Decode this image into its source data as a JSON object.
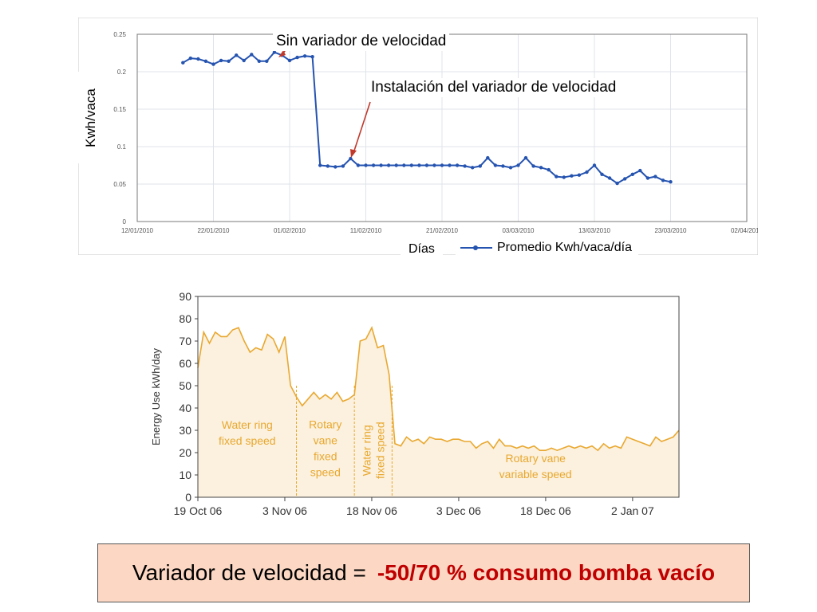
{
  "colors": {
    "line_blue": "#2553b0",
    "arrow_red": "#c0392b",
    "orange": "#e9a830",
    "orange_fill": "#fbf1de",
    "summary_bg": "#fcd8c4",
    "summary_accent": "#c00000"
  },
  "annotations": {
    "sin_variador": "Sin variador de velocidad",
    "instalacion": "Instalación del variador de velocidad"
  },
  "summary": {
    "text": "Variador de velocidad =",
    "highlight": "-50/70 % consumo bomba vacío"
  },
  "chart_data": [
    {
      "type": "line",
      "xlabel": "Días",
      "ylabel": "Kwh/vaca",
      "ylim": [
        0,
        0.25
      ],
      "y_ticks": [
        "0",
        "0.05",
        "0.1",
        "0.15",
        "0.2",
        "0.25"
      ],
      "x_tick_labels": [
        "12/01/2010",
        "22/01/2010",
        "01/02/2010",
        "11/02/2010",
        "21/02/2010",
        "03/03/2010",
        "13/03/2010",
        "23/03/2010",
        "02/04/2010"
      ],
      "xlim": [
        "12/01/2010",
        "02/04/2010"
      ],
      "grid": true,
      "legend_position": "bottom",
      "series": [
        {
          "name": "Promedio Kwh/vaca/día",
          "x": [
            "18/01/2010",
            "19/01/2010",
            "20/01/2010",
            "21/01/2010",
            "22/01/2010",
            "23/01/2010",
            "24/01/2010",
            "25/01/2010",
            "26/01/2010",
            "27/01/2010",
            "28/01/2010",
            "29/01/2010",
            "30/01/2010",
            "31/01/2010",
            "01/02/2010",
            "02/02/2010",
            "03/02/2010",
            "04/02/2010",
            "05/02/2010",
            "06/02/2010",
            "07/02/2010",
            "08/02/2010",
            "09/02/2010",
            "10/02/2010",
            "11/02/2010",
            "12/02/2010",
            "13/02/2010",
            "14/02/2010",
            "15/02/2010",
            "16/02/2010",
            "17/02/2010",
            "18/02/2010",
            "19/02/2010",
            "20/02/2010",
            "21/02/2010",
            "22/02/2010",
            "23/02/2010",
            "24/02/2010",
            "25/02/2010",
            "26/02/2010",
            "27/02/2010",
            "28/02/2010",
            "01/03/2010",
            "02/03/2010",
            "03/03/2010",
            "04/03/2010",
            "05/03/2010",
            "06/03/2010",
            "07/03/2010",
            "08/03/2010",
            "09/03/2010",
            "10/03/2010",
            "11/03/2010",
            "12/03/2010",
            "13/03/2010",
            "14/03/2010",
            "15/03/2010",
            "16/03/2010",
            "17/03/2010",
            "18/03/2010",
            "19/03/2010",
            "20/03/2010",
            "21/03/2010",
            "22/03/2010",
            "23/03/2010"
          ],
          "values": [
            0.212,
            0.218,
            0.217,
            0.214,
            0.21,
            0.215,
            0.214,
            0.222,
            0.215,
            0.223,
            0.214,
            0.214,
            0.226,
            0.222,
            0.215,
            0.219,
            0.221,
            0.22,
            0.075,
            0.074,
            0.073,
            0.074,
            0.084,
            0.075,
            0.075,
            0.075,
            0.075,
            0.075,
            0.075,
            0.075,
            0.075,
            0.075,
            0.075,
            0.075,
            0.075,
            0.075,
            0.075,
            0.074,
            0.072,
            0.074,
            0.085,
            0.075,
            0.074,
            0.072,
            0.075,
            0.085,
            0.074,
            0.072,
            0.069,
            0.06,
            0.059,
            0.061,
            0.062,
            0.066,
            0.075,
            0.063,
            0.058,
            0.051,
            0.057,
            0.063,
            0.068,
            0.058,
            0.06,
            0.055,
            0.053
          ]
        }
      ]
    },
    {
      "type": "area",
      "xlabel": "",
      "ylabel": "Energy Use kWh/day",
      "ylim": [
        0,
        90
      ],
      "y_ticks": [
        "0",
        "10",
        "20",
        "30",
        "40",
        "50",
        "60",
        "70",
        "80",
        "90"
      ],
      "x_tick_labels": [
        "19 Oct 06",
        "3 Nov 06",
        "18 Nov 06",
        "3 Dec 06",
        "18 Dec 06",
        "2 Jan 07"
      ],
      "x_range_days": [
        0,
        83
      ],
      "grid": false,
      "regions": [
        {
          "label_lines": [
            "Water ring",
            "fixed speed"
          ],
          "x_start_day": 0,
          "x_end_day": 17,
          "rotated": false
        },
        {
          "label_lines": [
            "Rotary",
            "vane",
            "fixed",
            "speed"
          ],
          "x_start_day": 17,
          "x_end_day": 27,
          "rotated": false
        },
        {
          "label_lines": [
            "Water ring",
            "fixed speed"
          ],
          "x_start_day": 27,
          "x_end_day": 33.5,
          "rotated": true
        },
        {
          "label_lines": [
            "Rotary vane",
            "variable speed"
          ],
          "x_start_day": 33.5,
          "x_end_day": 83,
          "rotated": false
        }
      ],
      "series": [
        {
          "x_days": [
            0,
            1,
            2,
            3,
            4,
            5,
            6,
            7,
            8,
            9,
            10,
            11,
            12,
            13,
            14,
            15,
            16,
            17,
            18,
            19,
            20,
            21,
            22,
            23,
            24,
            25,
            26,
            27,
            28,
            29,
            30,
            31,
            32,
            33,
            34,
            35,
            36,
            37,
            38,
            39,
            40,
            41,
            42,
            43,
            44,
            45,
            46,
            47,
            48,
            49,
            50,
            51,
            52,
            53,
            54,
            55,
            56,
            57,
            58,
            59,
            60,
            61,
            62,
            63,
            64,
            65,
            66,
            67,
            68,
            69,
            70,
            71,
            72,
            73,
            74,
            75,
            76,
            77,
            78,
            79,
            80,
            81,
            82,
            83
          ],
          "values": [
            58,
            74,
            69,
            74,
            72,
            72,
            75,
            76,
            70,
            65,
            67,
            66,
            73,
            71,
            65,
            72,
            50,
            45,
            41,
            44,
            47,
            44,
            46,
            44,
            47,
            43,
            44,
            46,
            70,
            71,
            76,
            67,
            68,
            55,
            24,
            23,
            27,
            25,
            26,
            24,
            27,
            26,
            26,
            25,
            26,
            26,
            25,
            25,
            22,
            24,
            25,
            22,
            26,
            23,
            23,
            22,
            23,
            22,
            23,
            21,
            21,
            22,
            21,
            22,
            23,
            22,
            23,
            22,
            23,
            21,
            24,
            22,
            23,
            22,
            27,
            26,
            25,
            24,
            23,
            27,
            25,
            26,
            27,
            30
          ]
        }
      ]
    }
  ]
}
